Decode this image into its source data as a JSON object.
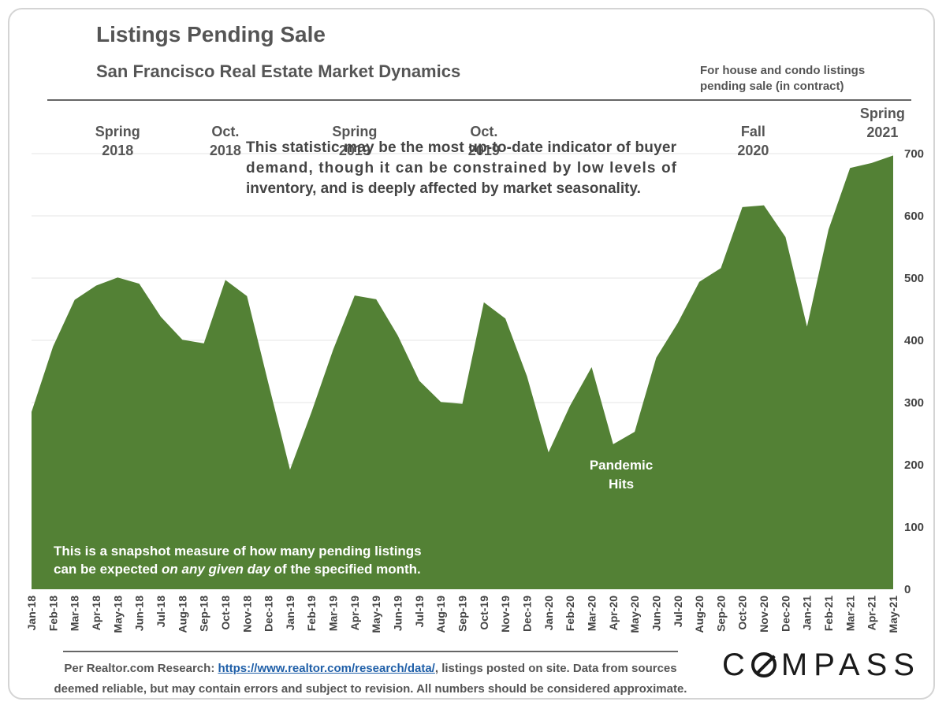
{
  "header": {
    "title": "Listings Pending Sale",
    "subtitle": "San Francisco Real Estate Market Dynamics",
    "note_line1": "For house and condo listings",
    "note_line2": "pending sale (in contract)"
  },
  "chart_data": {
    "type": "area",
    "color": "#538135",
    "ylim": [
      0,
      700
    ],
    "yticks": [
      0,
      100,
      200,
      300,
      400,
      500,
      600,
      700
    ],
    "grid": true,
    "categories": [
      "Jan-18",
      "Feb-18",
      "Mar-18",
      "Apr-18",
      "May-18",
      "Jun-18",
      "Jul-18",
      "Aug-18",
      "Sep-18",
      "Oct-18",
      "Nov-18",
      "Dec-18",
      "Jan-19",
      "Feb-19",
      "Mar-19",
      "Apr-19",
      "May-19",
      "Jun-19",
      "Jul-19",
      "Aug-19",
      "Sep-19",
      "Oct-19",
      "Nov-19",
      "Dec-19",
      "Jan-20",
      "Feb-20",
      "Mar-20",
      "Apr-20",
      "May-20",
      "Jun-20",
      "Jul-20",
      "Aug-20",
      "Sep-20",
      "Oct-20",
      "Nov-20",
      "Dec-20",
      "Jan-21",
      "Feb-21",
      "Mar-21",
      "Apr-21",
      "May-21"
    ],
    "values": [
      285,
      390,
      465,
      488,
      501,
      491,
      438,
      401,
      395,
      497,
      471,
      330,
      192,
      285,
      385,
      472,
      466,
      408,
      335,
      301,
      298,
      461,
      435,
      342,
      220,
      295,
      357,
      233,
      253,
      372,
      428,
      494,
      516,
      614,
      617,
      566,
      422,
      578,
      677,
      685,
      697
    ],
    "annotations": [
      {
        "lines": [
          "Spring",
          "2018"
        ],
        "index": 4,
        "value": 501
      },
      {
        "lines": [
          "Oct.",
          "2018"
        ],
        "index": 9,
        "value": 497
      },
      {
        "lines": [
          "Spring",
          "2019"
        ],
        "index": 15,
        "value": 472
      },
      {
        "lines": [
          "Oct.",
          "2019"
        ],
        "index": 21,
        "value": 461
      },
      {
        "lines": [
          "Fall",
          "2020"
        ],
        "index": 33.5,
        "value": 617
      },
      {
        "lines": [
          "Spring",
          "2021"
        ],
        "index": 39.5,
        "value": 697
      }
    ],
    "inside_annotation": {
      "lines": [
        "Pandemic",
        "Hits"
      ]
    },
    "callout": {
      "line1": "This statistic may be the most up-to-date indicator of buyer",
      "line2": "demand, though it can be constrained by low levels of",
      "line3": "inventory, and is deeply affected by market seasonality."
    },
    "inner_note": {
      "line1": "This is a snapshot measure of how many pending listings",
      "line2_a": "can be expected ",
      "line2_b": "on any given day",
      "line2_c": " of the specified month."
    }
  },
  "footer": {
    "prefix": "Per Realtor.com Research:  ",
    "link": "https://www.realtor.com/research/data/",
    "suffix": ", listings posted on site. Data from sources",
    "line2": "deemed reliable, but may contain errors and subject to revision. All numbers should be considered approximate."
  },
  "logo": {
    "text_after_c": "MPASS",
    "letter_c": "C"
  }
}
